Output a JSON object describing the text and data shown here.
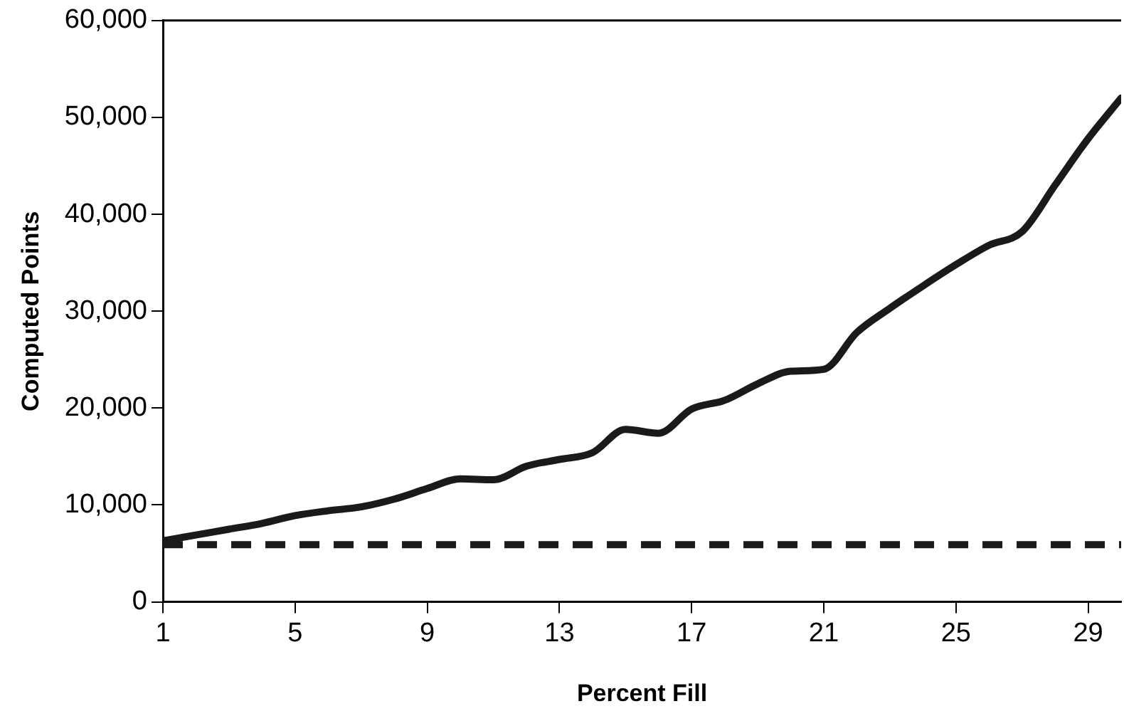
{
  "chart_data": {
    "type": "line",
    "xlabel": "Percent Fill",
    "ylabel": "Computed Points",
    "x": [
      1,
      2,
      3,
      4,
      5,
      6,
      7,
      8,
      9,
      10,
      11,
      12,
      13,
      14,
      15,
      16,
      17,
      18,
      19,
      20,
      21,
      22,
      23,
      24,
      25,
      26,
      27,
      28,
      29,
      30
    ],
    "series": [
      {
        "color": "#1a1a1a",
        "values": [
          6300,
          6900,
          7500,
          8100,
          8900,
          9400,
          9800,
          10600,
          11700,
          12700,
          12600,
          14000,
          14700,
          15400,
          17800,
          17400,
          19900,
          20800,
          22500,
          23800,
          24000,
          27800,
          30300,
          32600,
          34800,
          36800,
          38200,
          43000,
          47800,
          52000
        ]
      }
    ],
    "xlim": [
      1,
      30
    ],
    "xticks": [
      1,
      5,
      9,
      13,
      17,
      21,
      25,
      29
    ],
    "ylim": [
      0,
      60000
    ],
    "yticks": [
      {
        "value": 0,
        "label": "0"
      },
      {
        "value": 10000,
        "label": "10,000"
      },
      {
        "value": 20000,
        "label": "20,000"
      },
      {
        "value": 30000,
        "label": "30,000"
      },
      {
        "value": 40000,
        "label": "40,000"
      },
      {
        "value": 50000,
        "label": "50,000"
      },
      {
        "value": 60000,
        "label": "60,000"
      }
    ],
    "ref_lines": [
      {
        "axis": "y",
        "value": 5900,
        "color": "#1a1a1a",
        "line_style": "dashed"
      }
    ],
    "grid": false,
    "legend": false,
    "marker": "none",
    "line_style": "solid"
  }
}
